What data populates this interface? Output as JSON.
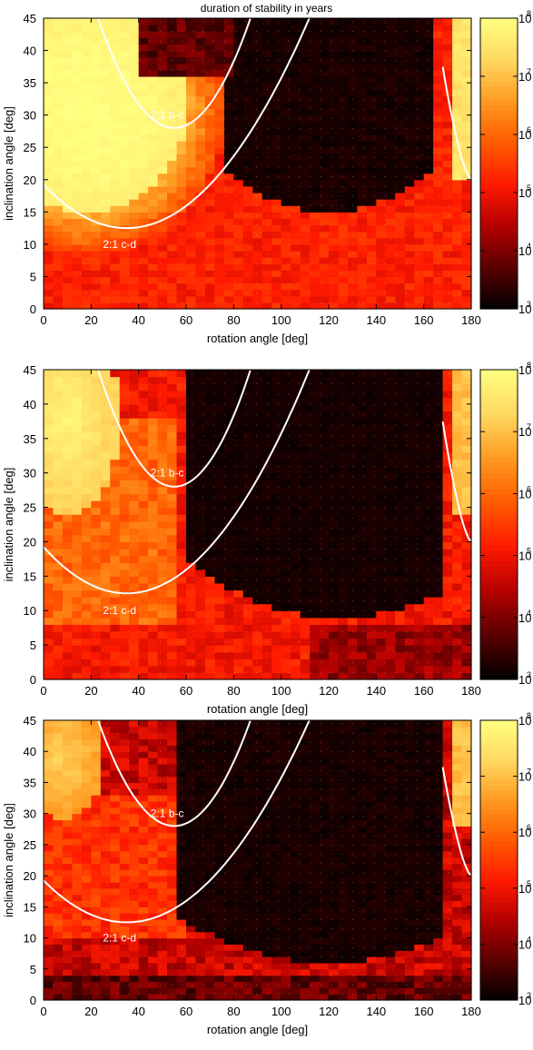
{
  "figure": {
    "title": "duration of stability in years"
  },
  "colors": {
    "colormap": [
      "#000000",
      "#5a0000",
      "#b40000",
      "#ff1a00",
      "#ff5a00",
      "#ff9a20",
      "#ffd860",
      "#ffff80"
    ],
    "curve": "#ffffff",
    "grid_dots": "#ffffff"
  },
  "chart_data": [
    {
      "type": "heatmap",
      "xlabel": "rotation angle [deg]",
      "ylabel": "inclination angle [deg]",
      "xlim": [
        0,
        180
      ],
      "ylim": [
        0,
        45
      ],
      "xticks": [
        0,
        20,
        40,
        60,
        80,
        100,
        120,
        140,
        160,
        180
      ],
      "yticks": [
        0,
        5,
        10,
        15,
        20,
        25,
        30,
        35,
        40,
        45
      ],
      "colorbar": {
        "scale": "log",
        "range": [
          1000,
          100000000
        ],
        "ticks": [
          "10",
          "10",
          "10",
          "10",
          "10",
          "10"
        ],
        "exponents": [
          "3",
          "4",
          "5",
          "6",
          "7",
          "8"
        ]
      },
      "grid": "dots",
      "cell_size_deg": [
        4,
        1
      ],
      "z_log10_grid_description": "columns = rotation 0–180 step 4, rows = inclination 0–45 step 1",
      "regions": {
        "stable_lobe_left": {
          "center": [
            18,
            30
          ],
          "log10_years": 8
        },
        "unstable_center": {
          "center": [
            125,
            30
          ],
          "log10_years": 3
        },
        "stable_edge_right": {
          "center": [
            178,
            38
          ],
          "log10_years": 7.5
        }
      },
      "curves": [
        {
          "label": "2:1 b-c",
          "vertex": [
            55,
            28
          ],
          "label_at": [
            52,
            30
          ]
        },
        {
          "label": "2:1 c-d",
          "vertex": [
            35,
            12.5
          ],
          "label_at": [
            32,
            10
          ]
        }
      ]
    },
    {
      "type": "heatmap",
      "xlabel": "rotation angle [deg]",
      "ylabel": "inclination angle [deg]",
      "xlim": [
        0,
        180
      ],
      "ylim": [
        0,
        45
      ],
      "xticks": [
        0,
        20,
        40,
        60,
        80,
        100,
        120,
        140,
        160,
        180
      ],
      "yticks": [
        0,
        5,
        10,
        15,
        20,
        25,
        30,
        35,
        40,
        45
      ],
      "colorbar": {
        "scale": "log",
        "range": [
          1000,
          100000000
        ],
        "ticks": [
          "10",
          "10",
          "10",
          "10",
          "10",
          "10"
        ],
        "exponents": [
          "3",
          "4",
          "5",
          "6",
          "7",
          "8"
        ]
      },
      "grid": "dots",
      "regions": {
        "stable_lobe_left": {
          "center": [
            12,
            35
          ],
          "log10_years": 7.8
        },
        "unstable_center": {
          "center": [
            125,
            28
          ],
          "log10_years": 3
        }
      },
      "curves": [
        {
          "label": "2:1 b-c",
          "vertex": [
            55,
            28
          ],
          "label_at": [
            52,
            30
          ]
        },
        {
          "label": "2:1 c-d",
          "vertex": [
            35,
            12.5
          ],
          "label_at": [
            32,
            10
          ]
        }
      ]
    },
    {
      "type": "heatmap",
      "xlabel": "rotation angle [deg]",
      "ylabel": "inclination angle [deg]",
      "xlim": [
        0,
        180
      ],
      "ylim": [
        0,
        45
      ],
      "xticks": [
        0,
        20,
        40,
        60,
        80,
        100,
        120,
        140,
        160,
        180
      ],
      "yticks": [
        0,
        5,
        10,
        15,
        20,
        25,
        30,
        35,
        40,
        45
      ],
      "colorbar": {
        "scale": "log",
        "range": [
          1000,
          100000000
        ],
        "ticks": [
          "10",
          "10",
          "10",
          "10",
          "10",
          "10"
        ],
        "exponents": [
          "3",
          "4",
          "5",
          "6",
          "7",
          "8"
        ]
      },
      "grid": "dots",
      "regions": {
        "stable_lobe_left": {
          "center": [
            8,
            38
          ],
          "log10_years": 7
        },
        "unstable_center": {
          "center": [
            120,
            25
          ],
          "log10_years": 3
        }
      },
      "curves": [
        {
          "label": "2:1 b-c",
          "vertex": [
            55,
            28
          ],
          "label_at": [
            52,
            30
          ]
        },
        {
          "label": "2:1 c-d",
          "vertex": [
            35,
            12.5
          ],
          "label_at": [
            32,
            10
          ]
        }
      ]
    }
  ]
}
